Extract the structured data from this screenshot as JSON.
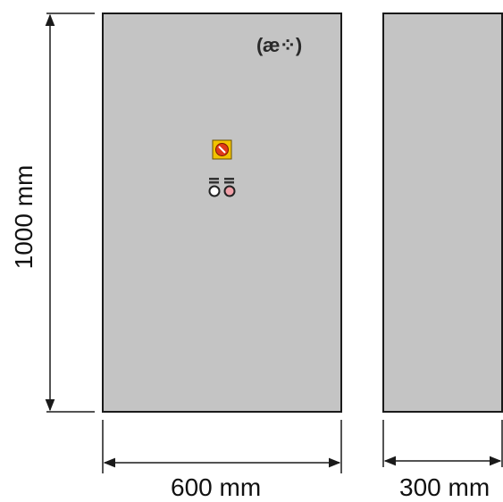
{
  "dimensions": {
    "height_label": "1000 mm",
    "width_label": "600 mm",
    "depth_label": "300 mm"
  },
  "logo": {
    "text": "(æ⁘)"
  },
  "colors": {
    "cabinet_fill": "#c4c4c4",
    "outline": "#1a1a1a",
    "switch_plate": "#f2c300",
    "switch_knob": "#e03a1a",
    "indicator_pink": "#f0a0a8"
  }
}
